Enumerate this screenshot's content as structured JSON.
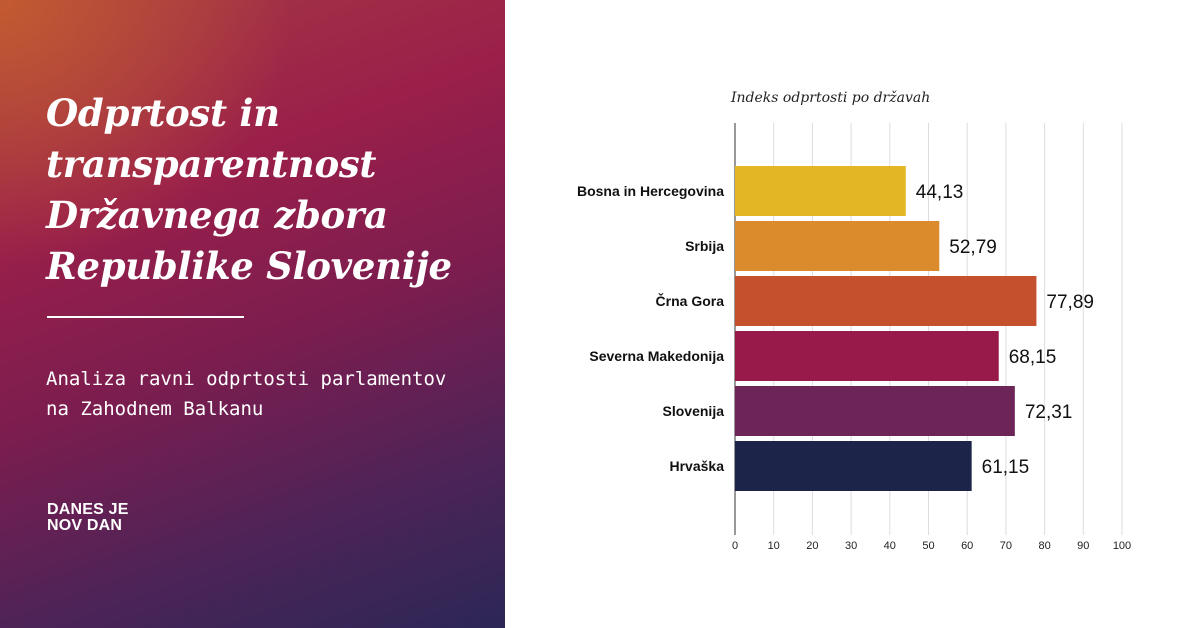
{
  "left_panel": {
    "title": "Odprtost in transparentnost Državnega zbora Republike Slovenije",
    "subtitle": "Analiza ravni odprtosti parlamentov na Zahodnem Balkanu",
    "logo_line1": "DANES JE",
    "logo_line2": "NOV DAN"
  },
  "chart_data": {
    "type": "bar",
    "orientation": "horizontal",
    "title": "Indeks odprtosti po državah",
    "categories": [
      "Bosna in Hercegovina",
      "Srbija",
      "Črna Gora",
      "Severna Makedonija",
      "Slovenija",
      "Hrvaška"
    ],
    "values": [
      44.13,
      52.79,
      77.89,
      68.15,
      72.31,
      61.15
    ],
    "value_labels": [
      "44,13",
      "52,79",
      "77,89",
      "68,15",
      "72,31",
      "61,15"
    ],
    "colors": [
      "#e2b624",
      "#db8a2c",
      "#c4502d",
      "#981a4b",
      "#6d2558",
      "#1c2549"
    ],
    "xlim": [
      0,
      100
    ],
    "xticks": [
      0,
      10,
      20,
      30,
      40,
      50,
      60,
      70,
      80,
      90,
      100
    ],
    "grid": true
  }
}
